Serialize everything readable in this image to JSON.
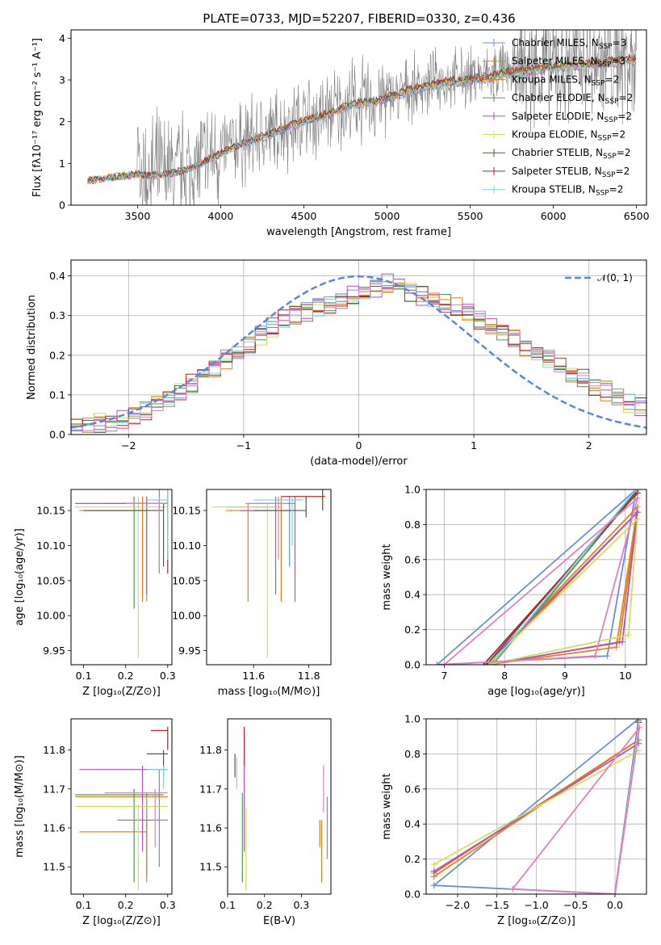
{
  "title": "PLATE=0733, MJD=52207, FIBERID=0330, z=0.436",
  "colors": {
    "chabrier_miles": "#6a8fd8",
    "salpeter_miles": "#e8801e",
    "kroupa_miles": "#e07a1a",
    "chabrier_elodie": "#4f9a4f",
    "salpeter_elodie": "#b44fc4",
    "kroupa_elodie": "#cde05a",
    "chabrier_stelib": "#555555",
    "salpeter_stelib": "#b0242a",
    "kroupa_stelib": "#7fd6e0",
    "pink": "#e37fbf",
    "data": "#808080",
    "gauss": "#5b86d9"
  },
  "legend_spectrum": [
    {
      "name": "Chabrier MILES, N",
      "sub": "SSP",
      "suffix": "=3"
    },
    {
      "name": "Salpeter MILES, N",
      "sub": "SSP",
      "suffix": "=3"
    },
    {
      "name": "Kroupa MILES, N",
      "sub": "SSP",
      "suffix": "=2"
    },
    {
      "name": "Chabrier ELODIE, N",
      "sub": "SSP",
      "suffix": "=2"
    },
    {
      "name": "Salpeter ELODIE, N",
      "sub": "SSP",
      "suffix": "=2"
    },
    {
      "name": "Kroupa ELODIE, N",
      "sub": "SSP",
      "suffix": "=2"
    },
    {
      "name": "Chabrier STELIB, N",
      "sub": "SSP",
      "suffix": "=2"
    },
    {
      "name": "Salpeter STELIB, N",
      "sub": "SSP",
      "suffix": "=2"
    },
    {
      "name": "Kroupa STELIB, N",
      "sub": "SSP",
      "suffix": "=2"
    }
  ],
  "legend_hist": "𝒩(0, 1)",
  "chart_data": [
    {
      "type": "line",
      "id": "spectrum",
      "xlabel": "wavelength [Angstrom, rest frame]",
      "ylabel": "Flux [fλ10⁻¹⁷ erg cm⁻² s⁻¹ A⁻¹]",
      "xlim": [
        3100,
        6560
      ],
      "ylim": [
        0,
        4.2
      ],
      "xticks": [
        3500,
        4000,
        4500,
        5000,
        5500,
        6000,
        6500
      ],
      "yticks": [
        0,
        1,
        2,
        3,
        4
      ],
      "model_x": [
        3200,
        3300,
        3400,
        3500,
        3600,
        3700,
        3800,
        3900,
        4000,
        4100,
        4200,
        4300,
        4400,
        4500,
        4600,
        4700,
        4800,
        4900,
        5000,
        5100,
        5200,
        5300,
        5400,
        5500,
        5600,
        5700,
        5800,
        5900,
        6000,
        6100,
        6200,
        6300,
        6400,
        6500
      ],
      "model_y": [
        0.6,
        0.65,
        0.7,
        0.75,
        0.72,
        0.78,
        0.85,
        1.05,
        1.25,
        1.45,
        1.6,
        1.72,
        1.9,
        2.05,
        2.15,
        2.3,
        2.45,
        2.5,
        2.6,
        2.75,
        2.85,
        2.95,
        3.0,
        3.05,
        3.1,
        3.2,
        3.25,
        3.3,
        3.35,
        3.4,
        3.42,
        3.45,
        3.5,
        3.55
      ]
    },
    {
      "type": "bar",
      "id": "residual-histogram",
      "xlabel": "(data-model)/error",
      "ylabel": "Normed distribution",
      "xlim": [
        -2.5,
        2.5
      ],
      "ylim": [
        0,
        0.44
      ],
      "xticks": [
        -2,
        -1,
        0,
        1,
        2
      ],
      "yticks": [
        0.0,
        0.1,
        0.2,
        0.3,
        0.4
      ],
      "bins": 50,
      "values": [
        0.02,
        0.02,
        0.03,
        0.03,
        0.04,
        0.05,
        0.06,
        0.08,
        0.09,
        0.11,
        0.13,
        0.15,
        0.17,
        0.19,
        0.21,
        0.23,
        0.25,
        0.27,
        0.29,
        0.3,
        0.31,
        0.32,
        0.33,
        0.34,
        0.35,
        0.36,
        0.37,
        0.38,
        0.37,
        0.36,
        0.35,
        0.34,
        0.33,
        0.32,
        0.31,
        0.29,
        0.27,
        0.26,
        0.24,
        0.22,
        0.21,
        0.19,
        0.17,
        0.15,
        0.14,
        0.12,
        0.11,
        0.09,
        0.08,
        0.07
      ]
    },
    {
      "type": "scatter",
      "id": "age-vs-Z",
      "xlabel": "Z [log₁₀(Z/Z⊙)]",
      "ylabel": "age  [log₁₀(age/yr)]",
      "xlim": [
        0.07,
        0.31
      ],
      "ylim": [
        9.93,
        10.18
      ],
      "xticks": [
        0.1,
        0.2,
        0.3
      ],
      "yticks": [
        9.95,
        10.0,
        10.05,
        10.1,
        10.15
      ]
    },
    {
      "type": "scatter",
      "id": "age-vs-mass",
      "xlabel": "mass [log₁₀(M/M⊙)]",
      "xlim": [
        11.43,
        11.88
      ],
      "ylim": [
        9.93,
        10.18
      ],
      "xticks": [
        11.6,
        11.8
      ],
      "yticks": [
        9.95,
        10.0,
        10.05,
        10.1,
        10.15
      ]
    },
    {
      "type": "line",
      "id": "weight-vs-age",
      "xlabel": "age  [log₁₀(age/yr)]",
      "ylabel": "mass weight",
      "xlim": [
        6.7,
        10.35
      ],
      "ylim": [
        0,
        1
      ],
      "xticks": [
        7,
        8,
        9,
        10
      ],
      "yticks": [
        0.0,
        0.2,
        0.4,
        0.6,
        0.8,
        1.0
      ]
    },
    {
      "type": "scatter",
      "id": "mass-vs-Z",
      "xlabel": "Z [log₁₀(Z/Z⊙)]",
      "ylabel": "mass [log₁₀(M/M⊙)]",
      "xlim": [
        0.07,
        0.31
      ],
      "ylim": [
        11.43,
        11.88
      ],
      "xticks": [
        0.1,
        0.2,
        0.3
      ],
      "yticks": [
        11.5,
        11.6,
        11.7,
        11.8
      ]
    },
    {
      "type": "scatter",
      "id": "mass-vs-ebv",
      "xlabel": "E(B-V)",
      "xlim": [
        0.1,
        0.38
      ],
      "ylim": [
        11.43,
        11.88
      ],
      "xticks": [
        0.1,
        0.2,
        0.3
      ],
      "yticks": [
        11.5,
        11.6,
        11.7,
        11.8
      ]
    },
    {
      "type": "line",
      "id": "weight-vs-Z",
      "xlabel": "Z [log₁₀(Z/Z⊙)]",
      "ylabel": "mass weight",
      "xlim": [
        -2.4,
        0.4
      ],
      "ylim": [
        0,
        1
      ],
      "xticks": [
        -2.0,
        -1.5,
        -1.0,
        -0.5,
        0.0
      ],
      "yticks": [
        0.0,
        0.2,
        0.4,
        0.6,
        0.8,
        1.0
      ]
    }
  ]
}
